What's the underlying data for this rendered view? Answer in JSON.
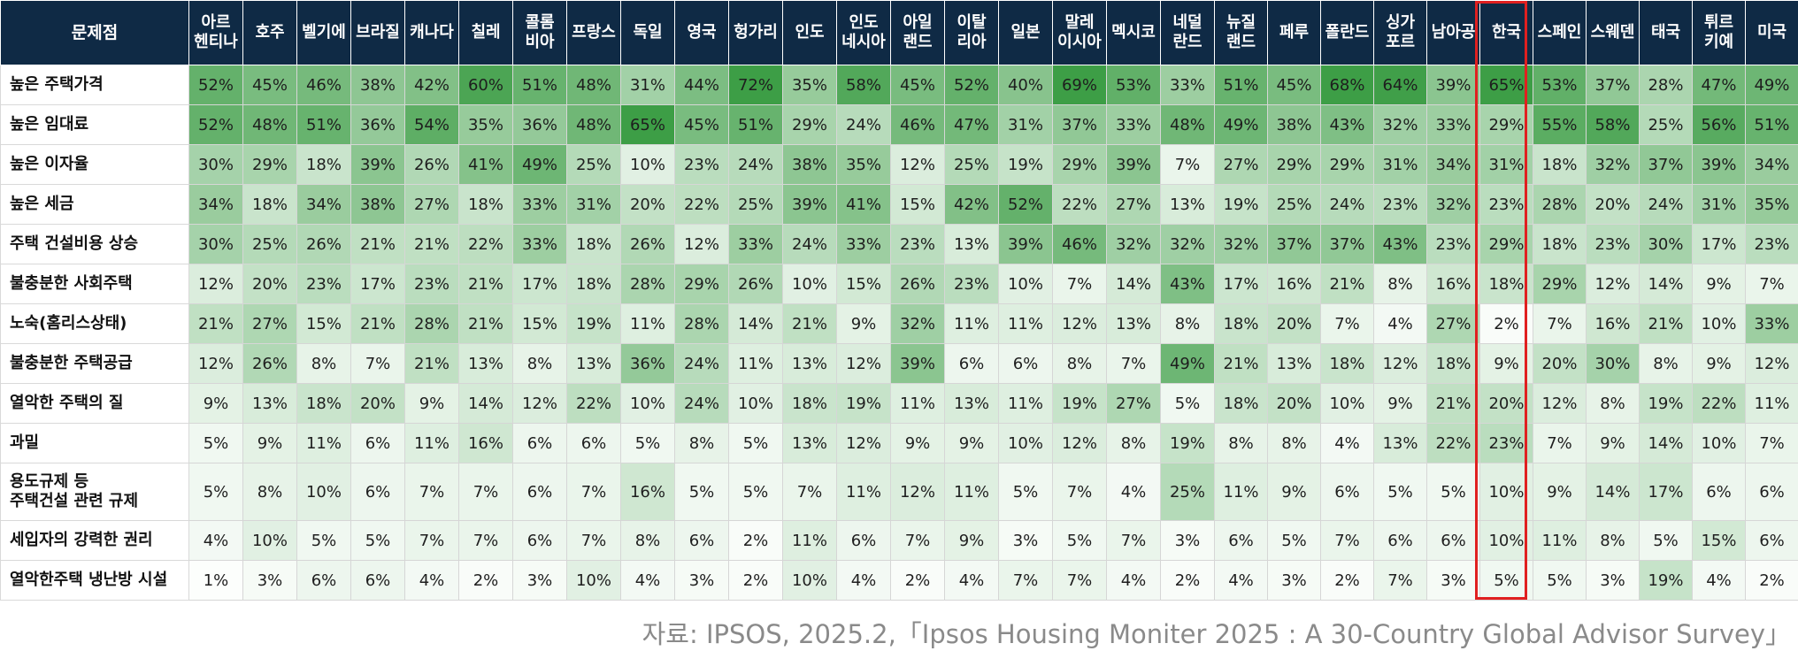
{
  "header": {
    "row_title": "문제점"
  },
  "source": "자료: IPSOS, 2025.2,「Ipsos Housing Moniter 2025 : A 30-Country Global Advisor Survey」",
  "colors": {
    "header_bg": "#0f2a45",
    "highlight_border": "#e02020",
    "scale_low": "#ffffff",
    "scale_high": "#3d9e46"
  },
  "highlight_country": "한국",
  "chart_data": {
    "type": "heatmap",
    "unit": "%",
    "countries": [
      "아르\n헨티나",
      "호주",
      "벨기에",
      "브라질",
      "캐나다",
      "칠레",
      "콜롬\n비아",
      "프랑스",
      "독일",
      "영국",
      "헝가리",
      "인도",
      "인도\n네시아",
      "아일\n랜드",
      "이탈\n리아",
      "일본",
      "말레\n이시아",
      "멕시코",
      "네덜\n란드",
      "뉴질\n랜드",
      "페루",
      "폴란드",
      "싱가\n포르",
      "남아공",
      "한국",
      "스페인",
      "스웨덴",
      "태국",
      "튀르\n키예",
      "미국"
    ],
    "issues": [
      "높은 주택가격",
      "높은 임대료",
      "높은 이자율",
      "높은 세금",
      "주택 건설비용 상승",
      "불충분한 사회주택",
      "노숙(홈리스상태)",
      "불충분한 주택공급",
      "열악한 주택의 질",
      "과밀",
      "용도규제 등\n주택건설 관련 규제",
      "세입자의 강력한 권리",
      "열악한주택 냉난방 시설"
    ],
    "values": [
      [
        52,
        45,
        46,
        38,
        42,
        60,
        51,
        48,
        31,
        44,
        72,
        35,
        58,
        45,
        52,
        40,
        69,
        53,
        33,
        51,
        45,
        68,
        64,
        39,
        65,
        53,
        37,
        28,
        47,
        49
      ],
      [
        52,
        48,
        51,
        36,
        54,
        35,
        36,
        48,
        65,
        45,
        51,
        29,
        24,
        46,
        47,
        31,
        37,
        33,
        48,
        49,
        38,
        43,
        32,
        33,
        29,
        55,
        58,
        25,
        56,
        51
      ],
      [
        30,
        29,
        18,
        39,
        26,
        41,
        49,
        25,
        10,
        23,
        24,
        38,
        35,
        12,
        25,
        19,
        29,
        39,
        7,
        27,
        29,
        29,
        31,
        34,
        31,
        18,
        32,
        37,
        39,
        34
      ],
      [
        34,
        18,
        34,
        38,
        27,
        18,
        33,
        31,
        20,
        22,
        25,
        39,
        41,
        15,
        42,
        52,
        22,
        27,
        13,
        19,
        25,
        24,
        23,
        32,
        23,
        28,
        20,
        24,
        31,
        35
      ],
      [
        30,
        25,
        26,
        21,
        21,
        22,
        33,
        18,
        26,
        12,
        33,
        24,
        33,
        23,
        13,
        39,
        46,
        32,
        32,
        32,
        37,
        37,
        43,
        23,
        29,
        18,
        23,
        30,
        17,
        23
      ],
      [
        12,
        20,
        23,
        17,
        23,
        21,
        17,
        18,
        28,
        29,
        26,
        10,
        15,
        26,
        23,
        10,
        7,
        14,
        43,
        17,
        16,
        21,
        8,
        16,
        18,
        29,
        12,
        14,
        9,
        7
      ],
      [
        21,
        27,
        15,
        21,
        28,
        21,
        15,
        19,
        11,
        28,
        14,
        21,
        9,
        32,
        11,
        11,
        12,
        13,
        8,
        18,
        20,
        7,
        4,
        27,
        2,
        7,
        16,
        21,
        10,
        33
      ],
      [
        12,
        26,
        8,
        7,
        21,
        13,
        8,
        13,
        36,
        24,
        11,
        13,
        12,
        39,
        6,
        6,
        8,
        7,
        49,
        21,
        13,
        18,
        12,
        18,
        9,
        20,
        30,
        8,
        9,
        12
      ],
      [
        9,
        13,
        18,
        20,
        9,
        14,
        12,
        22,
        10,
        24,
        10,
        18,
        19,
        11,
        13,
        11,
        19,
        27,
        5,
        18,
        20,
        10,
        9,
        21,
        20,
        12,
        8,
        19,
        22,
        11
      ],
      [
        5,
        9,
        11,
        6,
        11,
        16,
        6,
        6,
        5,
        8,
        5,
        13,
        12,
        9,
        9,
        10,
        12,
        8,
        19,
        8,
        8,
        4,
        13,
        22,
        23,
        7,
        9,
        14,
        10,
        7
      ],
      [
        5,
        8,
        10,
        6,
        7,
        7,
        6,
        7,
        16,
        5,
        5,
        7,
        11,
        12,
        11,
        5,
        7,
        4,
        25,
        11,
        9,
        6,
        5,
        5,
        10,
        9,
        14,
        17,
        6,
        6
      ],
      [
        4,
        10,
        5,
        5,
        7,
        7,
        6,
        7,
        8,
        6,
        2,
        11,
        6,
        7,
        9,
        3,
        5,
        7,
        3,
        6,
        5,
        7,
        6,
        6,
        10,
        11,
        8,
        5,
        15,
        6
      ],
      [
        1,
        3,
        6,
        6,
        4,
        2,
        3,
        10,
        4,
        3,
        2,
        10,
        4,
        2,
        4,
        7,
        7,
        4,
        2,
        4,
        3,
        2,
        7,
        3,
        5,
        5,
        3,
        19,
        4,
        2
      ]
    ]
  }
}
